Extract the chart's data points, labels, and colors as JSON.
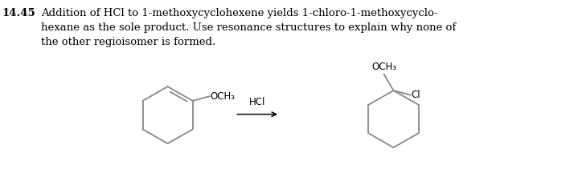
{
  "title_number": "14.45",
  "title_text_line1": "Addition of HCl to 1-methoxycyclohexene yields 1-chloro-1-methoxycyclo-",
  "title_text_line2": "hexane as the sole product. Use resonance structures to explain why none of",
  "title_text_line3": "the other regioisomer is formed.",
  "reagent_label": "HCl",
  "och3_label": "OCH₃",
  "cl_label": "Cl",
  "line_color": "#888888",
  "text_color": "#000000",
  "background_color": "#ffffff",
  "fig_width": 7.24,
  "fig_height": 2.31,
  "dpi": 100
}
